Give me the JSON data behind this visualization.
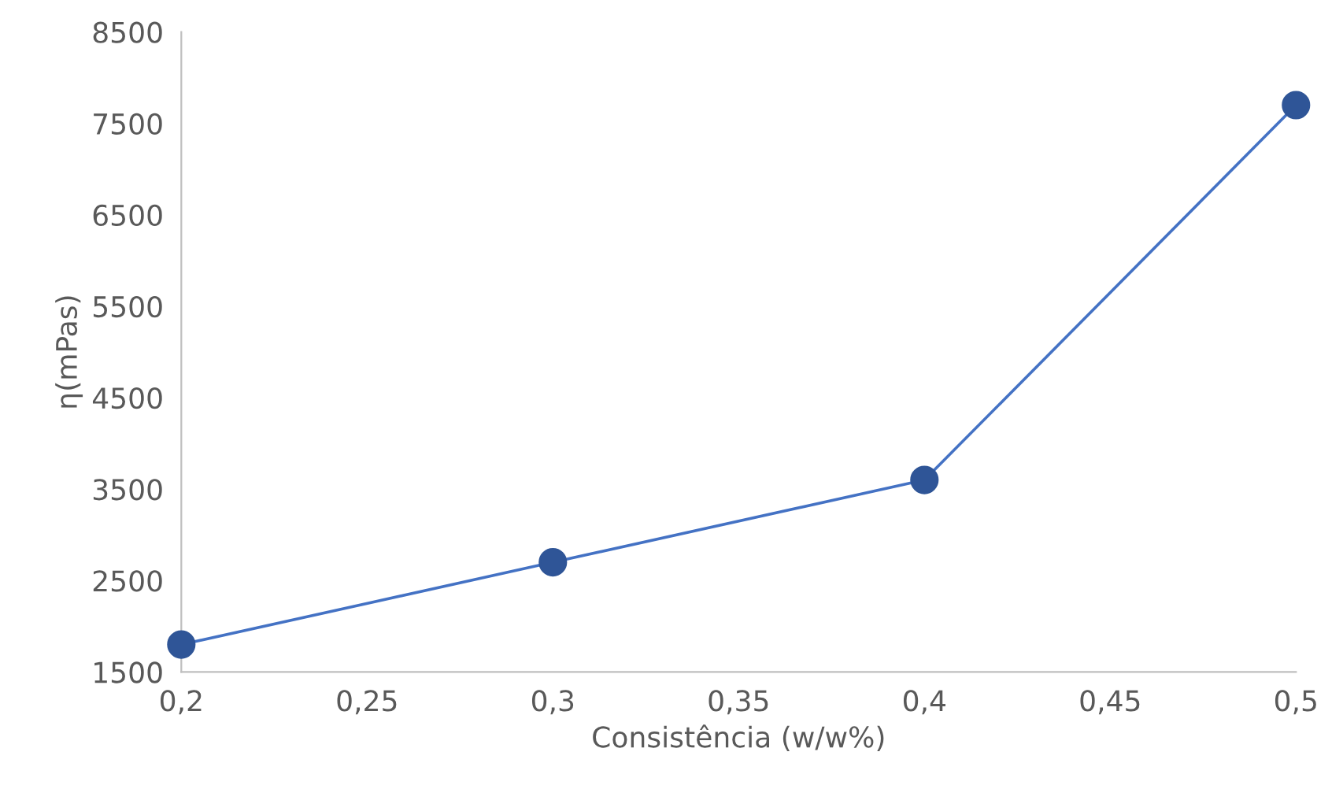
{
  "chart_data": {
    "type": "line",
    "xlabel": "Consistência (w/w%)",
    "ylabel": "η(mPas)",
    "x": [
      0.2,
      0.3,
      0.4,
      0.5
    ],
    "series": [
      {
        "color": "#4472c4",
        "values": [
          1800,
          2700,
          3600,
          7700
        ]
      }
    ],
    "marker": "circle",
    "line_style": "solid",
    "grid": false,
    "xlim": [
      0.2,
      0.5
    ],
    "xticks": [
      {
        "value": 0.2,
        "label": "0,2"
      },
      {
        "value": 0.25,
        "label": "0,25"
      },
      {
        "value": 0.3,
        "label": "0,3"
      },
      {
        "value": 0.35,
        "label": "0,35"
      },
      {
        "value": 0.4,
        "label": "0,4"
      },
      {
        "value": 0.45,
        "label": "0,45"
      },
      {
        "value": 0.5,
        "label": "0,5"
      }
    ],
    "ylim": [
      1500,
      8500
    ],
    "yticks": [
      1500,
      2500,
      3500,
      4500,
      5500,
      6500,
      7500,
      8500
    ]
  }
}
